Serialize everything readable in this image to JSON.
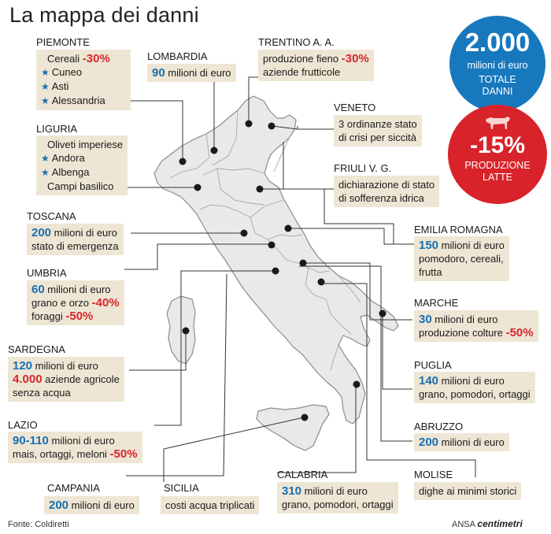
{
  "title": "La mappa dei danni",
  "source": "Fonte: Coldiretti",
  "credit": {
    "agency": "ANSA",
    "brand": "centimetri"
  },
  "totals": {
    "total_value": "2.000",
    "total_unit": "milioni di euro",
    "total_label_1": "TOTALE",
    "total_label_2": "DANNI",
    "milk_value": "-15%",
    "milk_label_1": "PRODUZIONE",
    "milk_label_2": "LATTE",
    "milk_icon": "cow-icon",
    "colors": {
      "total": "#1878bd",
      "milk": "#d8232a",
      "box": "#eee6d4",
      "number": "#1a6fb0",
      "negative": "#d8262b"
    }
  },
  "regions": {
    "piemonte": {
      "name": "PIEMONTE",
      "l1a": "Cereali ",
      "l1b": "-30%",
      "l2": "Cuneo",
      "l3": "Asti",
      "l4": "Alessandria"
    },
    "lombardia": {
      "name": "LOMBARDIA",
      "num": "90",
      "text": " milioni di euro"
    },
    "trentino": {
      "name": "TRENTINO A. A.",
      "l1a": "produzione fieno ",
      "l1b": "-30%",
      "l2": "aziende frutticole"
    },
    "veneto": {
      "name": "VENETO",
      "l1": "3 ordinanze stato",
      "l2": "di crisi per siccità"
    },
    "liguria": {
      "name": "LIGURIA",
      "l1": "Oliveti imperiese",
      "l2": "Andora",
      "l3": "Albenga",
      "l4": "Campi basilico"
    },
    "friuli": {
      "name": "FRIULI V. G.",
      "l1": "dichiarazione di stato",
      "l2": "di sofferenza idrica"
    },
    "toscana": {
      "name": "TOSCANA",
      "num": "200",
      "text": " milioni di euro",
      "l2": "stato di emergenza"
    },
    "emilia": {
      "name": "EMILIA ROMAGNA",
      "num": "150",
      "text": " milioni di euro",
      "l2": "pomodoro, cereali,",
      "l3": "frutta"
    },
    "umbria": {
      "name": "UMBRIA",
      "num": "60",
      "text": " milioni di euro",
      "l2a": "grano e orzo ",
      "l2b": "-40%",
      "l3a": "foraggi ",
      "l3b": "-50%"
    },
    "marche": {
      "name": "MARCHE",
      "num": "30",
      "text": " milioni di euro",
      "l2a": "produzione colture ",
      "l2b": "-50%"
    },
    "sardegna": {
      "name": "SARDEGNA",
      "num": "120",
      "text": " milioni di euro",
      "num2": "4.000",
      "text2": " aziende agricole",
      "l3": "senza acqua"
    },
    "puglia": {
      "name": "PUGLIA",
      "num": "140",
      "text": " milioni di euro",
      "l2": "grano, pomodori, ortaggi"
    },
    "lazio": {
      "name": "LAZIO",
      "num": "90-110",
      "text": " milioni di euro",
      "l2a": "mais, ortaggi, meloni ",
      "l2b": "-50%"
    },
    "abruzzo": {
      "name": "ABRUZZO",
      "num": "200",
      "text": " milioni di euro"
    },
    "molise": {
      "name": "MOLISE",
      "l1": "dighe ai minimi storici"
    },
    "campania": {
      "name": "CAMPANIA",
      "num": "200",
      "text": " milioni di euro"
    },
    "sicilia": {
      "name": "SICILIA",
      "l1": "costi acqua triplicati"
    },
    "calabria": {
      "name": "CALABRIA",
      "num": "310",
      "text": " milioni di euro",
      "l2": "grano, pomodori, ortaggi"
    }
  }
}
